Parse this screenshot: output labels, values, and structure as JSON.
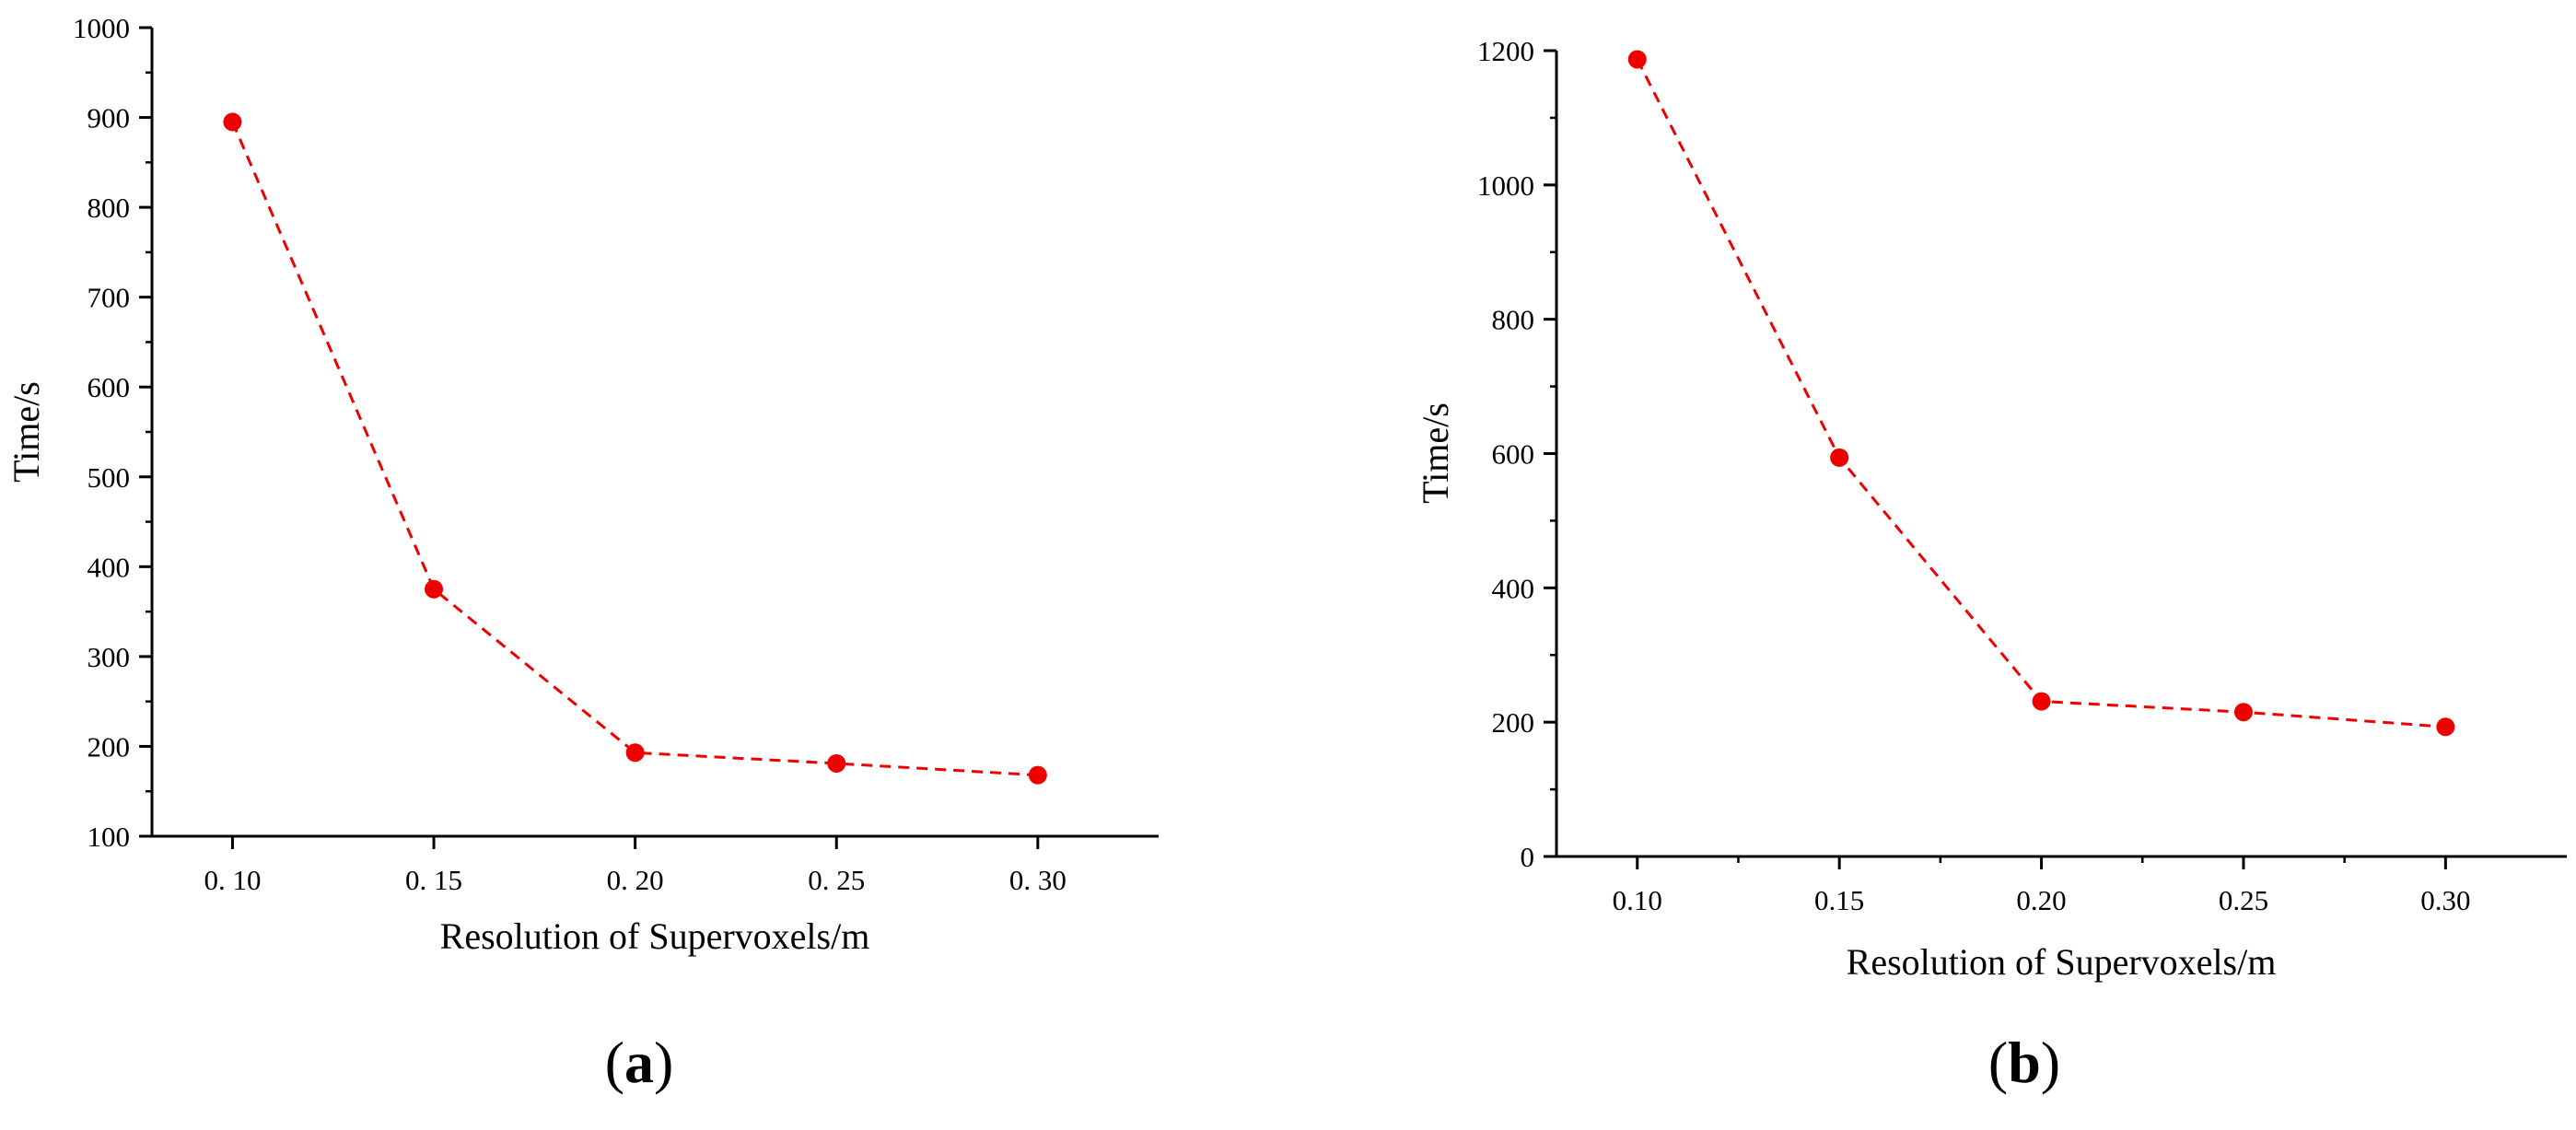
{
  "series_color": "#ee0000",
  "chart_data": [
    {
      "type": "line",
      "panel_label_prefix": "(",
      "panel_label_letter": "a",
      "panel_label_suffix": ")",
      "xlabel": "Resolution of Supervoxels/m",
      "ylabel": "Time/s",
      "x_ticks": [
        "0. 10",
        "0. 15",
        "0. 20",
        "0. 25",
        "0. 30"
      ],
      "x": [
        0.1,
        0.15,
        0.2,
        0.25,
        0.3
      ],
      "xlim": [
        0.08,
        0.33
      ],
      "ylim": [
        100,
        1000
      ],
      "y_ticks": [
        100,
        200,
        300,
        400,
        500,
        600,
        700,
        800,
        900,
        1000
      ],
      "y_minor_step": 50,
      "x_minor_ticks": false,
      "line_style": "dashed",
      "marker": "circle",
      "series": [
        {
          "values": [
            895,
            375,
            193,
            181,
            168
          ]
        }
      ]
    },
    {
      "type": "line",
      "panel_label_prefix": "(",
      "panel_label_letter": "b",
      "panel_label_suffix": ")",
      "xlabel": "Resolution of Supervoxels/m",
      "ylabel": "Time/s",
      "x_ticks": [
        "0.10",
        "0.15",
        "0.20",
        "0.25",
        "0.30"
      ],
      "x": [
        0.1,
        0.15,
        0.2,
        0.25,
        0.3
      ],
      "xlim": [
        0.08,
        0.33
      ],
      "ylim": [
        0,
        1200
      ],
      "y_ticks": [
        0,
        200,
        400,
        600,
        800,
        1000,
        1200
      ],
      "y_minor_step": 100,
      "x_minor_ticks": true,
      "line_style": "dashed",
      "marker": "circle",
      "series": [
        {
          "values": [
            1187,
            594,
            231,
            215,
            193
          ]
        }
      ]
    }
  ]
}
